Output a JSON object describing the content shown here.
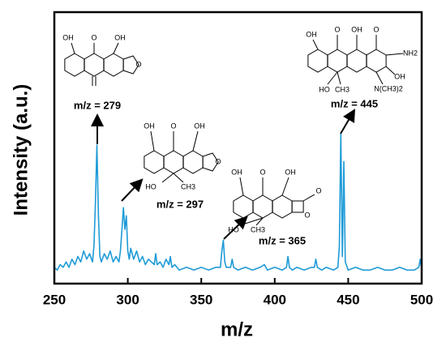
{
  "chart_data": {
    "type": "line",
    "x_label": "m/z",
    "y_label": "Intensity (a.u.)",
    "xlim": [
      250,
      500
    ],
    "xticks": [
      250,
      300,
      350,
      400,
      450,
      500
    ],
    "ylim": [
      0,
      100
    ],
    "series": [
      {
        "color": "#1e9bd7",
        "x": [
          250,
          252,
          254,
          256,
          258,
          260,
          262,
          264,
          266,
          268,
          270,
          272,
          274,
          276,
          277,
          278,
          279,
          280,
          281,
          282,
          284,
          286,
          288,
          290,
          292,
          294,
          295,
          296,
          297,
          298,
          299,
          300,
          301,
          302,
          304,
          306,
          308,
          310,
          312,
          314,
          316,
          318,
          319,
          320,
          322,
          324,
          326,
          328,
          329,
          330,
          332,
          335,
          340,
          345,
          350,
          355,
          360,
          363,
          364,
          365,
          366,
          367,
          370,
          371,
          372,
          375,
          380,
          385,
          390,
          393,
          395,
          400,
          405,
          408,
          409,
          410,
          412,
          415,
          420,
          425,
          427,
          428,
          429,
          432,
          435,
          440,
          443,
          444,
          445,
          446,
          447,
          448,
          450,
          455,
          460,
          465,
          470,
          475,
          480,
          485,
          490,
          495,
          498,
          499,
          500
        ],
        "values": [
          6,
          5,
          7,
          6,
          8,
          6,
          9,
          7,
          10,
          8,
          12,
          9,
          11,
          8,
          14,
          30,
          51,
          25,
          10,
          8,
          11,
          9,
          12,
          8,
          10,
          8,
          12,
          20,
          28,
          20,
          25,
          12,
          9,
          13,
          9,
          12,
          8,
          10,
          7,
          9,
          8,
          7,
          11,
          7,
          8,
          6,
          9,
          7,
          10,
          6,
          7,
          5,
          6,
          5,
          6,
          5,
          6,
          6,
          12,
          16,
          8,
          6,
          6,
          9,
          6,
          5,
          6,
          5,
          6,
          7,
          5,
          6,
          5,
          6,
          10,
          6,
          5,
          6,
          5,
          6,
          6,
          9,
          6,
          5,
          6,
          5,
          6,
          14,
          55,
          10,
          45,
          8,
          5,
          6,
          5,
          5,
          6,
          5,
          5,
          6,
          5,
          5,
          6,
          9,
          5
        ]
      }
    ],
    "annotations": [
      {
        "text": "m/z = 279",
        "x": 279,
        "atoms": [
          "OH",
          "O",
          "OH",
          "O"
        ]
      },
      {
        "text": "m/z = 297",
        "x": 297,
        "atoms": [
          "OH",
          "O",
          "OH",
          "O",
          "HO",
          "CH3"
        ]
      },
      {
        "text": "m/z = 365",
        "x": 365,
        "atoms": [
          "OH",
          "O",
          "OH",
          "O",
          "O",
          "HO",
          "CH3"
        ]
      },
      {
        "text": "m/z = 445",
        "x": 445,
        "atoms": [
          "OH",
          "O",
          "OH",
          "O",
          "NH2",
          "OH",
          "HO",
          "CH3",
          "N(CH3)2"
        ]
      }
    ]
  }
}
